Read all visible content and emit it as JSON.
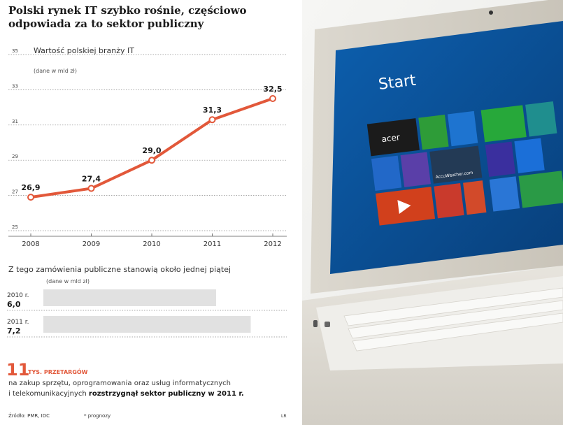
{
  "headline": "Polski rynek IT szybko rośnie, częściowo odpowiada za to sektor publiczny",
  "chart_data": [
    {
      "type": "line",
      "title": "Wartość polskiej branży IT",
      "ylabel": "(dane w mld zł)",
      "x": [
        "2008",
        "2009",
        "2010",
        "2011",
        "2012"
      ],
      "series": [
        {
          "values": [
            26.9,
            27.4,
            29.0,
            31.3,
            32.5
          ]
        }
      ],
      "value_labels": [
        "26,9",
        "27,4",
        "29,0",
        "31,3",
        "32,5"
      ],
      "y_ticks": [
        "25",
        "27",
        "29",
        "31",
        "33",
        "35"
      ],
      "ylim": [
        25,
        35
      ],
      "grid": true,
      "color": "#e2583a"
    },
    {
      "type": "bar",
      "title": "Z tego zamówienia publiczne stanowią około jednej piątej",
      "ylabel": "(dane w mld zł)",
      "categories": [
        "2010 r.",
        "2011 r."
      ],
      "values": [
        6.0,
        7.2
      ],
      "value_labels": [
        "6,0",
        "7,2"
      ],
      "color": "#c9c9c9"
    }
  ],
  "stat": {
    "number": "11",
    "unit": "TYS. PRZETARGÓW",
    "line1": "na zakup sprzętu, oprogramowania oraz usług informatycznych",
    "line2_plain": "i telekomunikacyjnych ",
    "line2_bold": "rozstrzygnął sektor publiczny w 2011 r."
  },
  "footer": {
    "source": "Źródło: PMR, IDC",
    "note": "* prognozy",
    "credit": "LR"
  },
  "photo": {
    "start_label": "Start",
    "brand": "acer",
    "tile_text": "AccuWeather.com",
    "screen_color": "#0a5aa6",
    "accent_color": "#e2583a"
  }
}
